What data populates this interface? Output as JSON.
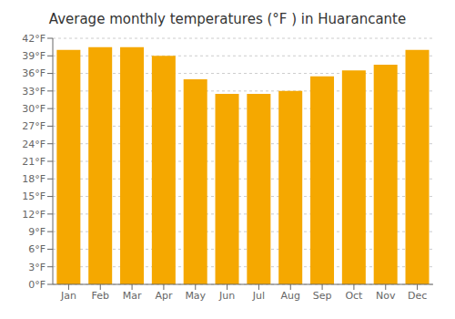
{
  "chart_data": {
    "type": "bar",
    "title": "Average monthly temperatures (°F ) in Huarancante",
    "categories": [
      "Jan",
      "Feb",
      "Mar",
      "Apr",
      "May",
      "Jun",
      "Jul",
      "Aug",
      "Sep",
      "Oct",
      "Nov",
      "Dec"
    ],
    "values": [
      40.0,
      40.5,
      40.5,
      39.0,
      35.0,
      32.5,
      32.5,
      33.0,
      35.5,
      36.5,
      37.5,
      40.0
    ],
    "color": "#F5A800",
    "ylim": [
      0,
      42
    ],
    "yticks": [
      {
        "value": 0,
        "label": "0°F"
      },
      {
        "value": 3,
        "label": "3°F"
      },
      {
        "value": 6,
        "label": "6°F"
      },
      {
        "value": 9,
        "label": "9°F"
      },
      {
        "value": 12,
        "label": "12°F"
      },
      {
        "value": 15,
        "label": "15°F"
      },
      {
        "value": 18,
        "label": "18°F"
      },
      {
        "value": 21,
        "label": "21°F"
      },
      {
        "value": 24,
        "label": "24°F"
      },
      {
        "value": 27,
        "label": "27°F"
      },
      {
        "value": 30,
        "label": "30°F"
      },
      {
        "value": 33,
        "label": "33°F"
      },
      {
        "value": 36,
        "label": "36°F"
      },
      {
        "value": 39,
        "label": "39°F"
      },
      {
        "value": 42,
        "label": "42°F"
      }
    ],
    "grid": true
  }
}
